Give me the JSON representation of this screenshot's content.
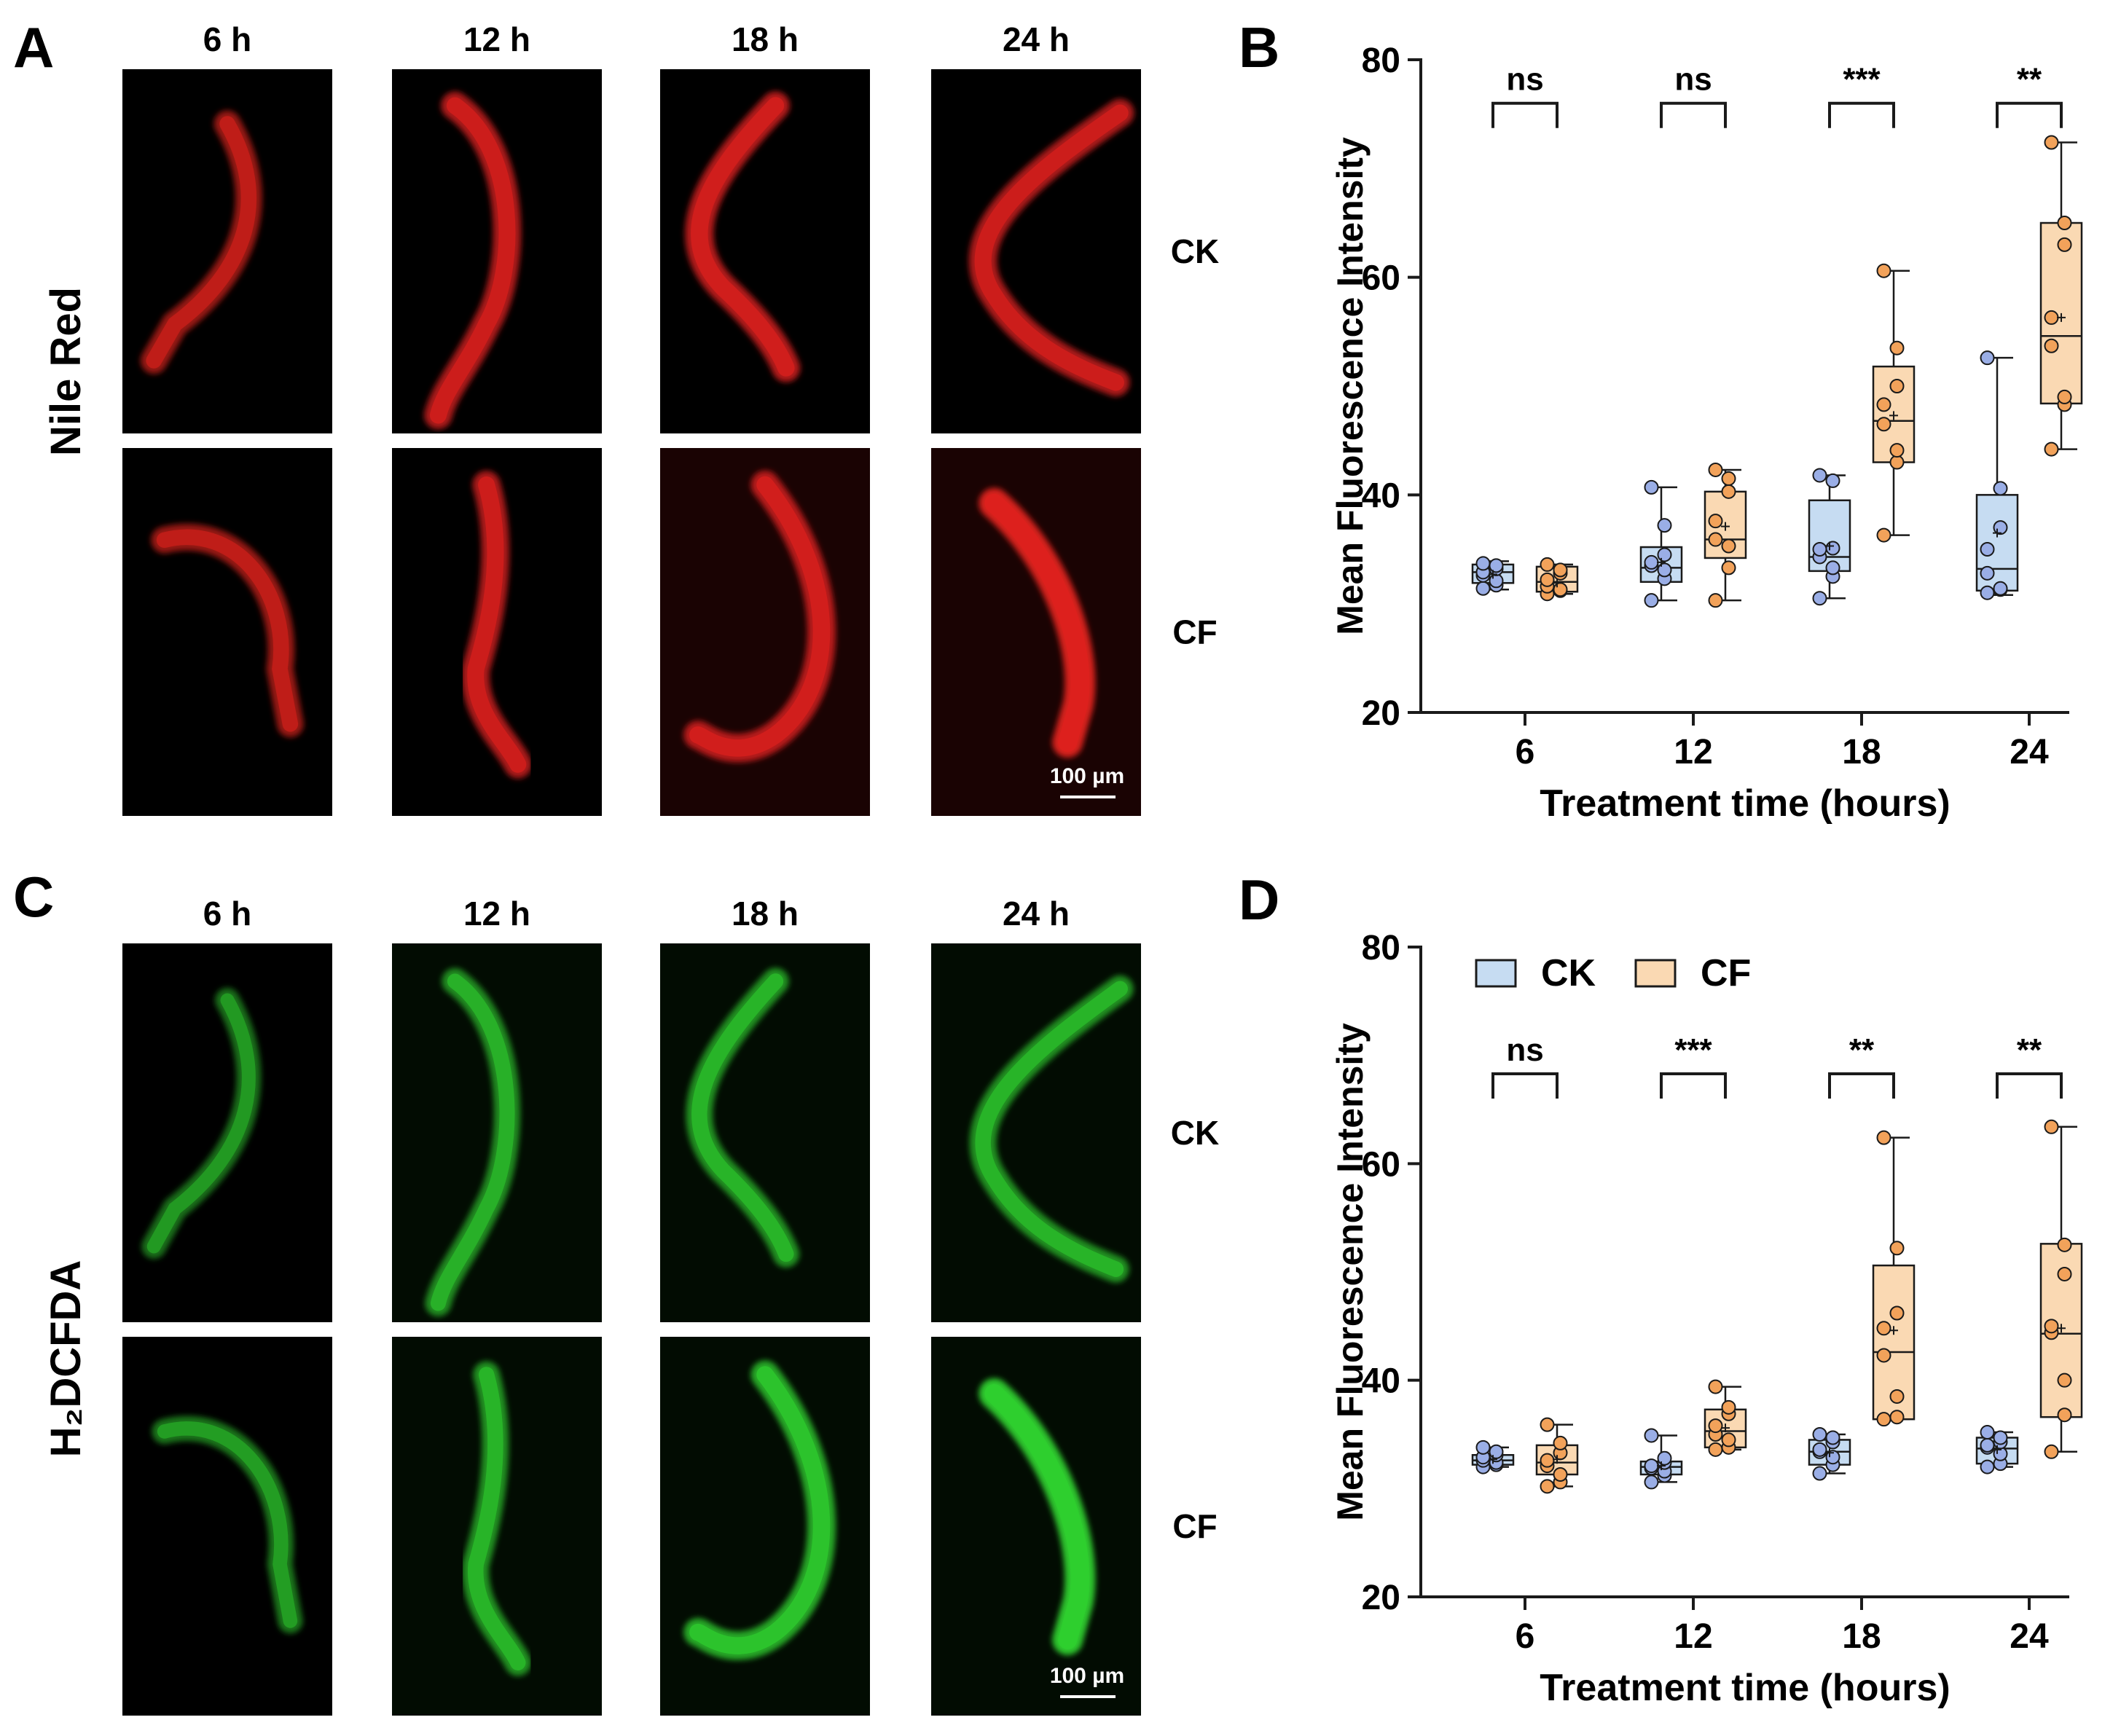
{
  "panel_labels": {
    "a": "A",
    "b": "B",
    "c": "C",
    "d": "D"
  },
  "micrograph_panels": [
    {
      "stain": "Nile Red",
      "columns": [
        "6 h",
        "12 h",
        "18 h",
        "24 h"
      ],
      "rows": [
        "CK",
        "CF"
      ],
      "scale_bar": "100 µm",
      "color": "#e0211e",
      "intensity": {
        "CK": [
          0.55,
          0.7,
          0.75,
          0.7
        ],
        "CF": [
          0.55,
          0.7,
          0.75,
          1.0
        ]
      }
    },
    {
      "stain": "H₂DCFDA",
      "columns": [
        "6 h",
        "12 h",
        "18 h",
        "24 h"
      ],
      "rows": [
        "CK",
        "CF"
      ],
      "scale_bar": "100 µm",
      "color": "#2fd12f",
      "intensity": {
        "CK": [
          0.3,
          0.5,
          0.55,
          0.55
        ],
        "CF": [
          0.35,
          0.55,
          0.75,
          1.0
        ]
      }
    }
  ],
  "legend": {
    "ck": "CK",
    "cf": "CF"
  },
  "colors": {
    "ck_fill": "#c6dcf2",
    "ck_point": "#9aaee6",
    "cf_fill": "#fad9b3",
    "cf_point": "#f2a25a",
    "outline": "#1a1a1a"
  },
  "chart_data": [
    {
      "type": "box",
      "panel": "B",
      "xlabel": "Treatment time (hours)",
      "ylabel": "Mean Fluorescence Intensity",
      "ylim": [
        20,
        80
      ],
      "yticks": [
        20,
        40,
        60,
        80
      ],
      "categories": [
        "6",
        "12",
        "18",
        "24"
      ],
      "significance": [
        "ns",
        "ns",
        "***",
        "**"
      ],
      "series": [
        {
          "name": "CK",
          "boxes": [
            {
              "min": 31.3,
              "q1": 31.9,
              "median": 32.9,
              "q3": 33.6,
              "max": 33.9,
              "mean": 32.7,
              "points": [
                31.4,
                31.7,
                32.1,
                32.6,
                32.9,
                33.2,
                33.5,
                33.7
              ]
            },
            {
              "min": 30.3,
              "q1": 32.0,
              "median": 33.3,
              "q3": 35.2,
              "max": 40.7,
              "mean": 33.8,
              "points": [
                30.3,
                32.3,
                33.1,
                33.5,
                33.8,
                34.5,
                37.2,
                40.7
              ]
            },
            {
              "min": 30.5,
              "q1": 33.0,
              "median": 34.3,
              "q3": 39.5,
              "max": 41.8,
              "mean": 35.3,
              "points": [
                30.5,
                32.5,
                33.3,
                34.3,
                35.0,
                35.1,
                41.3,
                41.8
              ]
            },
            {
              "min": 30.8,
              "q1": 31.2,
              "median": 33.2,
              "q3": 40.0,
              "max": 52.6,
              "mean": 36.5,
              "points": [
                31.0,
                31.3,
                31.4,
                32.8,
                35.0,
                37.0,
                40.6,
                52.6
              ]
            }
          ]
        },
        {
          "name": "CF",
          "boxes": [
            {
              "min": 30.9,
              "q1": 31.1,
              "median": 32.0,
              "q3": 33.4,
              "max": 33.6,
              "mean": 31.9,
              "points": [
                30.9,
                31.2,
                31.3,
                31.6,
                32.2,
                32.8,
                33.1,
                33.6
              ]
            },
            {
              "min": 30.3,
              "q1": 34.2,
              "median": 35.9,
              "q3": 40.3,
              "max": 42.3,
              "mean": 37.1,
              "points": [
                30.3,
                33.3,
                35.3,
                35.9,
                37.6,
                40.3,
                41.5,
                42.3
              ]
            },
            {
              "min": 36.3,
              "q1": 43.0,
              "median": 46.8,
              "q3": 51.8,
              "max": 60.6,
              "mean": 47.3,
              "points": [
                36.3,
                43.0,
                44.1,
                46.5,
                48.3,
                50.0,
                53.5,
                60.6
              ]
            },
            {
              "min": 44.2,
              "q1": 48.4,
              "median": 54.6,
              "q3": 65.0,
              "max": 72.4,
              "mean": 56.3,
              "points": [
                44.2,
                48.3,
                49.0,
                53.7,
                56.3,
                63.0,
                65.0,
                72.4
              ]
            }
          ]
        }
      ]
    },
    {
      "type": "box",
      "panel": "D",
      "xlabel": "Treatment time (hours)",
      "ylabel": "Mean Fluorescence Intensity",
      "ylim": [
        20,
        80
      ],
      "yticks": [
        20,
        40,
        60,
        80
      ],
      "categories": [
        "6",
        "12",
        "18",
        "24"
      ],
      "significance": [
        "ns",
        "***",
        "**",
        "**"
      ],
      "series": [
        {
          "name": "CK",
          "boxes": [
            {
              "min": 32.0,
              "q1": 32.2,
              "median": 32.6,
              "q3": 33.1,
              "max": 33.8,
              "mean": 32.7,
              "points": [
                32.0,
                32.2,
                32.4,
                32.6,
                32.9,
                33.1,
                33.4,
                33.8
              ]
            },
            {
              "min": 30.6,
              "q1": 31.3,
              "median": 32.0,
              "q3": 32.5,
              "max": 34.9,
              "mean": 32.1,
              "points": [
                30.6,
                31.2,
                31.6,
                31.9,
                32.1,
                32.4,
                32.8,
                34.9
              ]
            },
            {
              "min": 31.4,
              "q1": 32.2,
              "median": 33.4,
              "q3": 34.5,
              "max": 35.0,
              "mean": 33.3,
              "points": [
                31.4,
                32.2,
                32.9,
                33.4,
                33.6,
                34.3,
                34.7,
                35.0
              ]
            },
            {
              "min": 32.0,
              "q1": 32.3,
              "median": 33.7,
              "q3": 34.7,
              "max": 35.2,
              "mean": 33.6,
              "points": [
                32.0,
                32.3,
                33.2,
                33.8,
                34.0,
                34.3,
                34.7,
                35.2
              ]
            }
          ]
        },
        {
          "name": "CF",
          "boxes": [
            {
              "min": 30.2,
              "q1": 31.3,
              "median": 32.4,
              "q3": 34.0,
              "max": 35.9,
              "mean": 32.7,
              "points": [
                30.2,
                30.6,
                31.3,
                32.1,
                32.6,
                33.3,
                34.2,
                35.9
              ]
            },
            {
              "min": 33.6,
              "q1": 33.8,
              "median": 35.3,
              "q3": 37.3,
              "max": 39.4,
              "mean": 35.6,
              "points": [
                33.6,
                33.8,
                34.5,
                35.0,
                35.8,
                36.9,
                37.5,
                39.4
              ]
            },
            {
              "min": 36.4,
              "q1": 36.4,
              "median": 42.6,
              "q3": 50.6,
              "max": 62.4,
              "mean": 44.6,
              "points": [
                36.4,
                36.6,
                38.5,
                42.3,
                44.8,
                46.2,
                52.2,
                62.4
              ]
            },
            {
              "min": 33.4,
              "q1": 36.6,
              "median": 44.3,
              "q3": 52.6,
              "max": 63.4,
              "mean": 44.8,
              "points": [
                33.4,
                36.8,
                40.0,
                44.4,
                45.0,
                49.8,
                52.5,
                63.4
              ]
            }
          ]
        }
      ]
    }
  ]
}
